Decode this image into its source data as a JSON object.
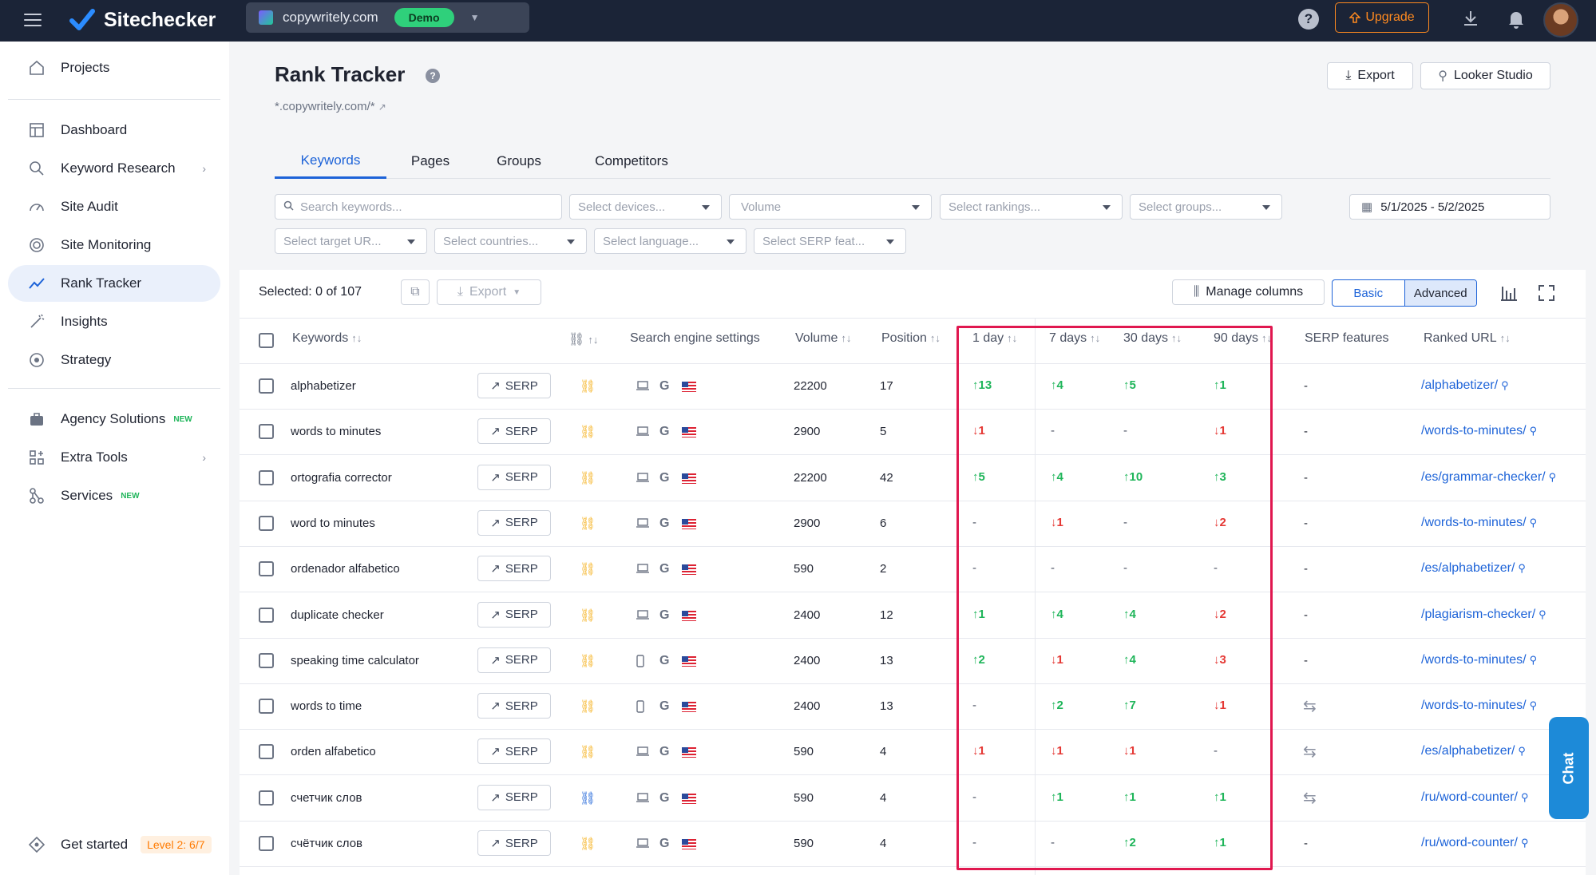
{
  "app": {
    "name": "Sitechecker"
  },
  "project": {
    "domain": "copywritely.com",
    "badge": "Demo"
  },
  "topbar": {
    "help": "?",
    "upgrade_label": "Upgrade"
  },
  "sidebar": {
    "items": [
      {
        "label": "Projects"
      },
      {
        "label": "Dashboard"
      },
      {
        "label": "Keyword Research"
      },
      {
        "label": "Site Audit"
      },
      {
        "label": "Site Monitoring"
      },
      {
        "label": "Rank Tracker"
      },
      {
        "label": "Insights"
      },
      {
        "label": "Strategy"
      },
      {
        "label": "Agency Solutions",
        "badge": "NEW"
      },
      {
        "label": "Extra Tools"
      },
      {
        "label": "Services",
        "badge": "NEW"
      }
    ],
    "get_started": {
      "label": "Get started",
      "level": "Level 2: 6/7"
    }
  },
  "page": {
    "title": "Rank Tracker",
    "title_help": "?",
    "subtitle": "*.copywritely.com/*",
    "export_label": "Export",
    "looker_label": "Looker Studio"
  },
  "tabs": [
    "Keywords",
    "Pages",
    "Groups",
    "Competitors"
  ],
  "filters": {
    "search_placeholder": "Search keywords...",
    "devices": "Select devices...",
    "volume": "Volume",
    "rankings": "Select rankings...",
    "groups": "Select groups...",
    "date_range": "5/1/2025 - 5/2/2025",
    "target_url": "Select target UR...",
    "countries": "Select countries...",
    "language": "Select language...",
    "serp_features": "Select SERP feat..."
  },
  "toolbar": {
    "selected": "Selected: 0 of 107",
    "export_label": "Export",
    "manage_columns": "Manage columns",
    "basic": "Basic",
    "advanced": "Advanced"
  },
  "columns": {
    "keywords": "Keywords",
    "search_engine": "Search engine settings",
    "volume": "Volume",
    "position": "Position",
    "d1": "1 day",
    "d7": "7 days",
    "d30": "30 days",
    "d90": "90 days",
    "serp_features": "SERP features",
    "ranked_url": "Ranked URL",
    "sort_glyph": "↑↓"
  },
  "serp_label": "SERP",
  "rows": [
    {
      "keyword": "alphabetizer",
      "device": "desktop",
      "volume": "22200",
      "position": "17",
      "d1": "↑13",
      "d1_dir": "up",
      "d7": "↑4",
      "d7_dir": "up",
      "d30": "↑5",
      "d30_dir": "up",
      "d90": "↑1",
      "d90_dir": "up",
      "serp": "-",
      "url": "/alphabetizer/"
    },
    {
      "keyword": "words to minutes",
      "device": "desktop",
      "volume": "2900",
      "position": "5",
      "d1": "↓1",
      "d1_dir": "down",
      "d7": "-",
      "d7_dir": "none",
      "d30": "-",
      "d30_dir": "none",
      "d90": "↓1",
      "d90_dir": "down",
      "serp": "-",
      "url": "/words-to-minutes/"
    },
    {
      "keyword": "ortografia corrector",
      "device": "desktop",
      "volume": "22200",
      "position": "42",
      "d1": "↑5",
      "d1_dir": "up",
      "d7": "↑4",
      "d7_dir": "up",
      "d30": "↑10",
      "d30_dir": "up",
      "d90": "↑3",
      "d90_dir": "up",
      "serp": "-",
      "url": "/es/grammar-checker/"
    },
    {
      "keyword": "word to minutes",
      "device": "desktop",
      "volume": "2900",
      "position": "6",
      "d1": "-",
      "d1_dir": "none",
      "d7": "↓1",
      "d7_dir": "down",
      "d30": "-",
      "d30_dir": "none",
      "d90": "↓2",
      "d90_dir": "down",
      "serp": "-",
      "url": "/words-to-minutes/"
    },
    {
      "keyword": "ordenador alfabetico",
      "device": "desktop",
      "volume": "590",
      "position": "2",
      "d1": "-",
      "d1_dir": "none",
      "d7": "-",
      "d7_dir": "none",
      "d30": "-",
      "d30_dir": "none",
      "d90": "-",
      "d90_dir": "none",
      "serp": "-",
      "url": "/es/alphabetizer/"
    },
    {
      "keyword": "duplicate checker",
      "device": "desktop",
      "volume": "2400",
      "position": "12",
      "d1": "↑1",
      "d1_dir": "up",
      "d7": "↑4",
      "d7_dir": "up",
      "d30": "↑4",
      "d30_dir": "up",
      "d90": "↓2",
      "d90_dir": "down",
      "serp": "-",
      "url": "/plagiarism-checker/"
    },
    {
      "keyword": "speaking time calculator",
      "device": "mobile",
      "volume": "2400",
      "position": "13",
      "d1": "↑2",
      "d1_dir": "up",
      "d7": "↓1",
      "d7_dir": "down",
      "d30": "↑4",
      "d30_dir": "up",
      "d90": "↓3",
      "d90_dir": "down",
      "serp": "-",
      "url": "/words-to-minutes/"
    },
    {
      "keyword": "words to time",
      "device": "mobile",
      "volume": "2400",
      "position": "13",
      "d1": "-",
      "d1_dir": "none",
      "d7": "↑2",
      "d7_dir": "up",
      "d30": "↑7",
      "d30_dir": "up",
      "d90": "↓1",
      "d90_dir": "down",
      "serp": "⇆",
      "url": "/words-to-minutes/"
    },
    {
      "keyword": "orden alfabetico",
      "device": "desktop",
      "volume": "590",
      "position": "4",
      "d1": "↓1",
      "d1_dir": "down",
      "d7": "↓1",
      "d7_dir": "down",
      "d30": "↓1",
      "d30_dir": "down",
      "d90": "-",
      "d90_dir": "none",
      "serp": "⇆",
      "url": "/es/alphabetizer/"
    },
    {
      "keyword": "счетчик слов",
      "device": "desktop",
      "volume": "590",
      "position": "4",
      "d1": "-",
      "d1_dir": "none",
      "d7": "↑1",
      "d7_dir": "up",
      "d30": "↑1",
      "d30_dir": "up",
      "d90": "↑1",
      "d90_dir": "up",
      "serp": "⇆",
      "url": "/ru/word-counter/"
    },
    {
      "keyword": "счётчик слов",
      "device": "desktop",
      "volume": "590",
      "position": "4",
      "d1": "-",
      "d1_dir": "none",
      "d7": "-",
      "d7_dir": "none",
      "d30": "↑2",
      "d30_dir": "up",
      "d90": "↑1",
      "d90_dir": "up",
      "serp": "-",
      "url": "/ru/word-counter/"
    }
  ],
  "chat_label": "Chat",
  "colors": {
    "accent": "#1d63d8",
    "up": "#1fb55a",
    "down": "#e53935",
    "highlight": "#e0174f",
    "topbar": "#1b2437",
    "upgrade": "#ff8a1f"
  }
}
